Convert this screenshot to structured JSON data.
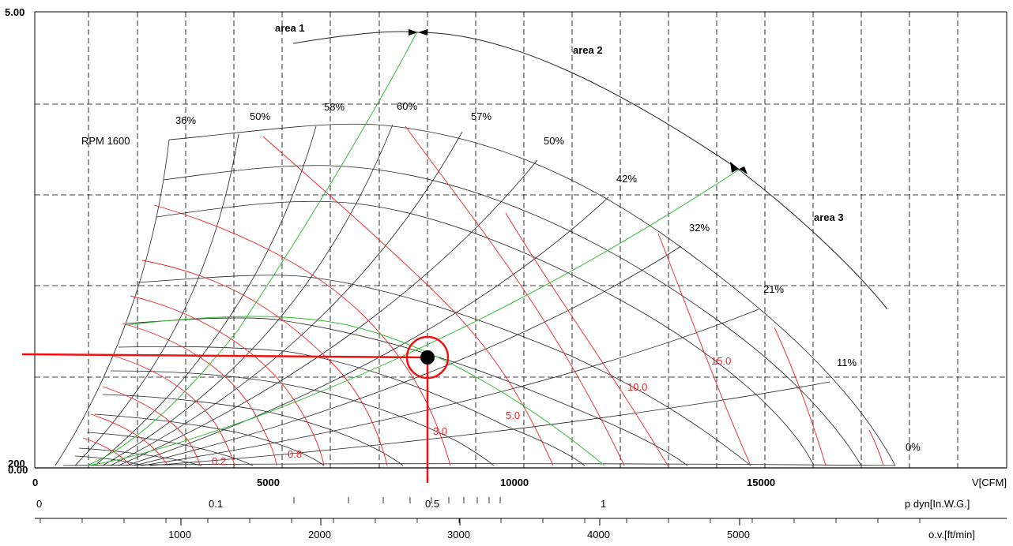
{
  "chart_data": {
    "type": "line",
    "title": "",
    "rpm_label": "RPM 1600",
    "x_axis": {
      "label": "V[CFM]",
      "range": [
        0,
        19000
      ],
      "ticks": [
        "0",
        "5000",
        "10000",
        "15000"
      ]
    },
    "y_axis": {
      "top_label": "5.00",
      "bottom_label": "200",
      "bottom_overlap_label": "0.00"
    },
    "pdyn_axis": {
      "label": "p dyn[In.W.G.]",
      "ticks": [
        "0",
        "0.1",
        "0.5",
        "1"
      ]
    },
    "ov_axis": {
      "label": "o.v.[ft/min]",
      "ticks": [
        "1000",
        "2000",
        "3000",
        "4000",
        "5000"
      ]
    },
    "grid": true,
    "efficiency_labels": [
      "36%",
      "50%",
      "58%",
      "60%",
      "57%",
      "50%",
      "42%",
      "32%",
      "21%",
      "11%",
      "0%"
    ],
    "power_labels": [
      "0.2",
      "0.8",
      "3.0",
      "5.0",
      "10.0",
      "15.0"
    ],
    "area_labels": [
      "area 1",
      "area 2",
      "area 3"
    ],
    "operating_point": {
      "V_cfm": 8000,
      "pressure": 1.22
    },
    "colors": {
      "grid": "#000000",
      "curves": "#222222",
      "power": "#ee2222",
      "efficiency_green": "#33bb33",
      "marker": "#ee1111"
    }
  }
}
